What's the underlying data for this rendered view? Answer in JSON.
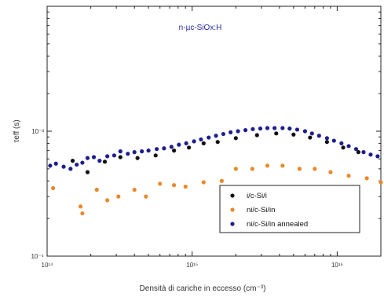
{
  "chart_data": {
    "type": "scatter",
    "title": "n-µc-SiOx:H",
    "xlabel": "Densità di cariche in eccesso (cm⁻³)",
    "ylabel": "τeff (s)",
    "xscale": "log",
    "yscale": "log",
    "xlim": [
      100000000000000.0,
      2e+16
    ],
    "ylim": [
      0.0001,
      0.01
    ],
    "x_ticks": [
      {
        "value": 100000000000000.0,
        "label": "10¹⁴"
      },
      {
        "value": 1000000000000000.0,
        "label": "10¹⁵"
      },
      {
        "value": 1e+16,
        "label": "10¹⁶"
      }
    ],
    "y_ticks": [
      {
        "value": 0.0001,
        "label": "10⁻⁴"
      },
      {
        "value": 0.001,
        "label": "10⁻³"
      }
    ],
    "grid": false,
    "legend_position": "bottom-right",
    "series": [
      {
        "name": "i/c-Si/i",
        "color": "#111111",
        "points": [
          [
            150000000000000.0,
            0.00058
          ],
          [
            190000000000000.0,
            0.00047
          ],
          [
            250000000000000.0,
            0.00057
          ],
          [
            320000000000000.0,
            0.00062
          ],
          [
            420000000000000.0,
            0.00061
          ],
          [
            560000000000000.0,
            0.00064
          ],
          [
            750000000000000.0,
            0.0007
          ],
          [
            950000000000000.0,
            0.00074
          ],
          [
            1200000000000000.0,
            0.0008
          ],
          [
            1500000000000000.0,
            0.00082
          ],
          [
            2000000000000000.0,
            0.00088
          ],
          [
            2800000000000000.0,
            0.00093
          ],
          [
            3800000000000000.0,
            0.00096
          ],
          [
            5000000000000000.0,
            0.00094
          ],
          [
            6500000000000000.0,
            0.00089
          ],
          [
            8500000000000000.0,
            0.00082
          ],
          [
            1.1e+16,
            0.00074
          ],
          [
            1.4e+16,
            0.00068
          ]
        ]
      },
      {
        "name": "ni/c-Si/in",
        "color": "#e8892a",
        "points": [
          [
            110000000000000.0,
            0.00035
          ],
          [
            170000000000000.0,
            0.00025
          ],
          [
            175000000000000.0,
            0.00022
          ],
          [
            220000000000000.0,
            0.00034
          ],
          [
            260000000000000.0,
            0.00028
          ],
          [
            310000000000000.0,
            0.0003
          ],
          [
            400000000000000.0,
            0.00034
          ],
          [
            480000000000000.0,
            0.0003
          ],
          [
            600000000000000.0,
            0.00038
          ],
          [
            750000000000000.0,
            0.00037
          ],
          [
            900000000000000.0,
            0.00036
          ],
          [
            1200000000000000.0,
            0.00039
          ],
          [
            1600000000000000.0,
            0.0004
          ],
          [
            2000000000000000.0,
            0.0005
          ],
          [
            2600000000000000.0,
            0.0005
          ],
          [
            3300000000000000.0,
            0.00053
          ],
          [
            4200000000000000.0,
            0.00053
          ],
          [
            5500000000000000.0,
            0.0005
          ],
          [
            7000000000000000.0,
            0.0005
          ],
          [
            9000000000000000.0,
            0.00047
          ],
          [
            1.2e+16,
            0.00044
          ],
          [
            1.6e+16,
            0.00042
          ],
          [
            2e+16,
            0.00039
          ]
        ]
      },
      {
        "name": "ni/c-Si/in annealed",
        "color": "#1e1e8c",
        "points": [
          [
            105000000000000.0,
            0.00053
          ],
          [
            115000000000000.0,
            0.00055
          ],
          [
            130000000000000.0,
            0.00052
          ],
          [
            145000000000000.0,
            0.0005
          ],
          [
            160000000000000.0,
            0.00054
          ],
          [
            175000000000000.0,
            0.00056
          ],
          [
            190000000000000.0,
            0.00061
          ],
          [
            210000000000000.0,
            0.00062
          ],
          [
            230000000000000.0,
            0.00058
          ],
          [
            260000000000000.0,
            0.00063
          ],
          [
            290000000000000.0,
            0.00064
          ],
          [
            320000000000000.0,
            0.00069
          ],
          [
            360000000000000.0,
            0.00066
          ],
          [
            400000000000000.0,
            0.00068
          ],
          [
            450000000000000.0,
            0.00069
          ],
          [
            500000000000000.0,
            0.0007
          ],
          [
            570000000000000.0,
            0.00072
          ],
          [
            640000000000000.0,
            0.00073
          ],
          [
            720000000000000.0,
            0.00075
          ],
          [
            810000000000000.0,
            0.00078
          ],
          [
            910000000000000.0,
            0.0008
          ],
          [
            1030000000000000.0,
            0.00083
          ],
          [
            1150000000000000.0,
            0.00086
          ],
          [
            1300000000000000.0,
            0.00089
          ],
          [
            1460000000000000.0,
            0.00092
          ],
          [
            1640000000000000.0,
            0.00095
          ],
          [
            1840000000000000.0,
            0.00098
          ],
          [
            2070000000000000.0,
            0.001
          ],
          [
            2330000000000000.0,
            0.00102
          ],
          [
            2620000000000000.0,
            0.00104
          ],
          [
            2950000000000000.0,
            0.00105
          ],
          [
            3300000000000000.0,
            0.00106
          ],
          [
            3700000000000000.0,
            0.00106
          ],
          [
            4200000000000000.0,
            0.00106
          ],
          [
            4700000000000000.0,
            0.00105
          ],
          [
            5300000000000000.0,
            0.00103
          ],
          [
            6000000000000000.0,
            0.001
          ],
          [
            6700000000000000.0,
            0.00096
          ],
          [
            7500000000000000.0,
            0.00092
          ],
          [
            8500000000000000.0,
            0.00088
          ],
          [
            9500000000000000.0,
            0.00084
          ],
          [
            1.07e+16,
            0.0008
          ],
          [
            1.2e+16,
            0.00076
          ],
          [
            1.35e+16,
            0.00072
          ],
          [
            1.52e+16,
            0.00068
          ],
          [
            1.7e+16,
            0.00065
          ],
          [
            1.9e+16,
            0.00063
          ]
        ]
      }
    ]
  }
}
